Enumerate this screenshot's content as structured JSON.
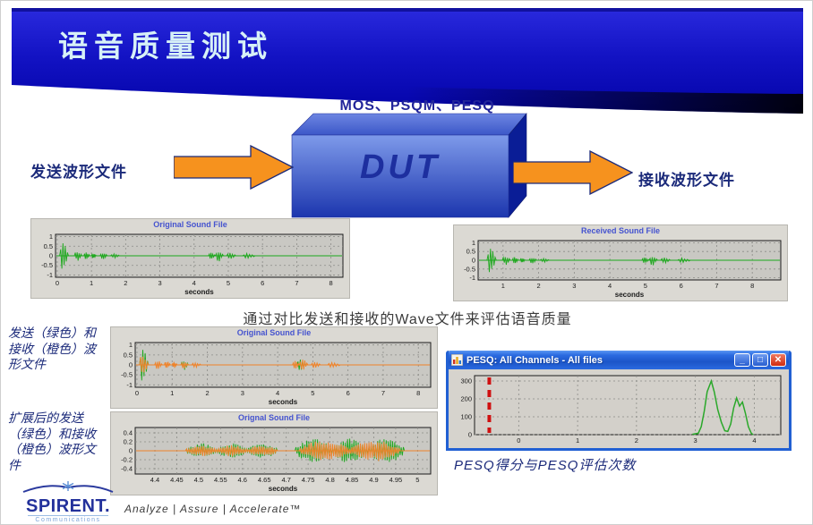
{
  "header": {
    "title": "语音质量测试"
  },
  "diagram": {
    "methods_label": "MOS、PSQM、PESQ",
    "dut_label": "DUT",
    "send_label": "发送波形文件",
    "receive_label": "接收波形文件"
  },
  "captions": {
    "compare": "通过对比发送和接收的Wave文件来评估语音质量",
    "overlay_note": "发送（绿色）和接收（橙色）波形文件",
    "expanded_note": "扩展后的发送（绿色）和接收（橙色）波形文件",
    "pesq_caption": "PESQ得分与PESQ评估次数"
  },
  "pesq_window": {
    "title": "PESQ: All Channels - All files",
    "minimize_glyph": "_",
    "maximize_glyph": "□",
    "close_glyph": "✕"
  },
  "footer": {
    "brand": "SPIRENT.",
    "brand_sub": "Communications",
    "tagline": "Analyze | Assure | Accelerate™"
  },
  "colors": {
    "header_blue": "#1313c4",
    "title_text": "#d7f1f7",
    "navy": "#1b2a7a",
    "arrow_orange": "#f6921e",
    "wave_green": "#1ca81c",
    "wave_orange": "#f08228",
    "pesq_red": "#cf1010",
    "plot_bg": "#c9c8c3",
    "xp_titlebar": "#2a6ae0"
  },
  "chart_data": [
    {
      "type": "waveform",
      "title": "Original Sound File",
      "xlabel": "seconds",
      "xlim": [
        -0.05,
        8.35
      ],
      "ylim": [
        -1.12,
        1.12
      ],
      "xticks": [
        0,
        1,
        2,
        3,
        4,
        5,
        6,
        7,
        8
      ],
      "yticks": [
        1,
        0.5,
        0,
        -0.5,
        -1
      ],
      "grid": true,
      "bg": "#c9c8c3",
      "series": [
        {
          "name": "original",
          "color": "#1ca81c",
          "bursts": [
            [
              0.07,
              0.33,
              0.82
            ],
            [
              0.5,
              0.72,
              0.28
            ],
            [
              0.78,
              0.95,
              0.22
            ],
            [
              1.0,
              1.14,
              0.16
            ],
            [
              1.25,
              1.46,
              0.2
            ],
            [
              1.56,
              1.82,
              0.13
            ],
            [
              4.42,
              4.62,
              0.2
            ],
            [
              4.62,
              4.86,
              0.3
            ],
            [
              4.95,
              5.22,
              0.17
            ],
            [
              5.42,
              5.78,
              0.14
            ]
          ]
        }
      ]
    },
    {
      "type": "waveform",
      "title": "Received Sound File",
      "xlabel": "seconds",
      "xlim": [
        0.3,
        8.8
      ],
      "ylim": [
        -1.12,
        1.12
      ],
      "xticks": [
        1,
        2,
        3,
        4,
        5,
        6,
        7,
        8
      ],
      "yticks": [
        1,
        0.5,
        0,
        -0.5,
        -1
      ],
      "grid": true,
      "bg": "#c9c8c3",
      "series": [
        {
          "name": "received",
          "color": "#1ca81c",
          "bursts": [
            [
              0.55,
              0.81,
              0.82
            ],
            [
              0.98,
              1.2,
              0.28
            ],
            [
              1.26,
              1.43,
              0.22
            ],
            [
              1.48,
              1.62,
              0.16
            ],
            [
              1.73,
              1.94,
              0.2
            ],
            [
              2.04,
              2.3,
              0.13
            ],
            [
              4.9,
              5.1,
              0.2
            ],
            [
              5.1,
              5.34,
              0.3
            ],
            [
              5.43,
              5.7,
              0.17
            ],
            [
              5.9,
              6.26,
              0.14
            ]
          ]
        }
      ]
    },
    {
      "type": "waveform",
      "title": "Original Sound File",
      "xlabel": "seconds",
      "xlim": [
        -0.05,
        8.35
      ],
      "ylim": [
        -1.12,
        1.12
      ],
      "xticks": [
        0,
        1,
        2,
        3,
        4,
        5,
        6,
        7,
        8
      ],
      "yticks": [
        1,
        0.5,
        0,
        -0.5,
        -1
      ],
      "grid": true,
      "bg": "#c9c8c3",
      "series": [
        {
          "name": "sent-green",
          "color": "#1ca81c",
          "bursts": [
            [
              0.07,
              0.33,
              0.95
            ],
            [
              1.25,
              1.46,
              0.26
            ],
            [
              4.55,
              4.8,
              0.34
            ]
          ]
        },
        {
          "name": "received-orange",
          "color": "#f08228",
          "bursts": [
            [
              0.07,
              0.33,
              0.6
            ],
            [
              0.5,
              0.72,
              0.28
            ],
            [
              0.78,
              0.95,
              0.22
            ],
            [
              1.0,
              1.14,
              0.16
            ],
            [
              1.25,
              1.46,
              0.2
            ],
            [
              1.56,
              1.82,
              0.13
            ],
            [
              4.42,
              4.62,
              0.2
            ],
            [
              4.62,
              4.86,
              0.3
            ],
            [
              4.95,
              5.22,
              0.17
            ],
            [
              5.42,
              5.78,
              0.14
            ]
          ]
        }
      ]
    },
    {
      "type": "waveform",
      "title": "Orignal Sound File",
      "xlabel": "seconds",
      "xlim": [
        4.355,
        5.03
      ],
      "ylim": [
        -0.52,
        0.52
      ],
      "dense": true,
      "xticks": [
        4.4,
        4.45,
        4.5,
        4.55,
        4.6,
        4.65,
        4.7,
        4.75,
        4.8,
        4.85,
        4.9,
        4.95,
        5
      ],
      "yticks": [
        0.4,
        0.2,
        0,
        -0.2,
        -0.4
      ],
      "grid": true,
      "bg": "#c9c8c3",
      "series": [
        {
          "name": "sent-green",
          "color": "#1ca81c",
          "bursts": [
            [
              4.47,
              4.68,
              0.17,
              3
            ],
            [
              4.72,
              4.97,
              0.28,
              3
            ]
          ]
        },
        {
          "name": "received-orange",
          "color": "#f08228",
          "bursts": [
            [
              4.47,
              4.68,
              0.13,
              3
            ],
            [
              4.73,
              4.96,
              0.24,
              2
            ]
          ]
        }
      ]
    },
    {
      "type": "line",
      "title": "",
      "xlabel": "",
      "xlim": [
        -0.75,
        4.45
      ],
      "ylim": [
        0,
        330
      ],
      "xticks": [
        0,
        1,
        2,
        3,
        4
      ],
      "yticks": [
        0,
        100,
        200,
        300
      ],
      "grid": true,
      "bg": "#d3d0ca",
      "vline": {
        "x": -0.5,
        "color": "#cf1010"
      },
      "series": [
        {
          "name": "pesq-score-histogram",
          "color": "#2aa82a",
          "points": [
            [
              2.95,
              2
            ],
            [
              3.05,
              8
            ],
            [
              3.1,
              45
            ],
            [
              3.15,
              130
            ],
            [
              3.2,
              240
            ],
            [
              3.27,
              300
            ],
            [
              3.32,
              240
            ],
            [
              3.38,
              140
            ],
            [
              3.44,
              70
            ],
            [
              3.5,
              22
            ],
            [
              3.55,
              18
            ],
            [
              3.6,
              60
            ],
            [
              3.65,
              150
            ],
            [
              3.7,
              205
            ],
            [
              3.75,
              160
            ],
            [
              3.8,
              182
            ],
            [
              3.85,
              120
            ],
            [
              3.9,
              45
            ],
            [
              3.95,
              8
            ],
            [
              3.98,
              0
            ]
          ]
        }
      ]
    }
  ]
}
